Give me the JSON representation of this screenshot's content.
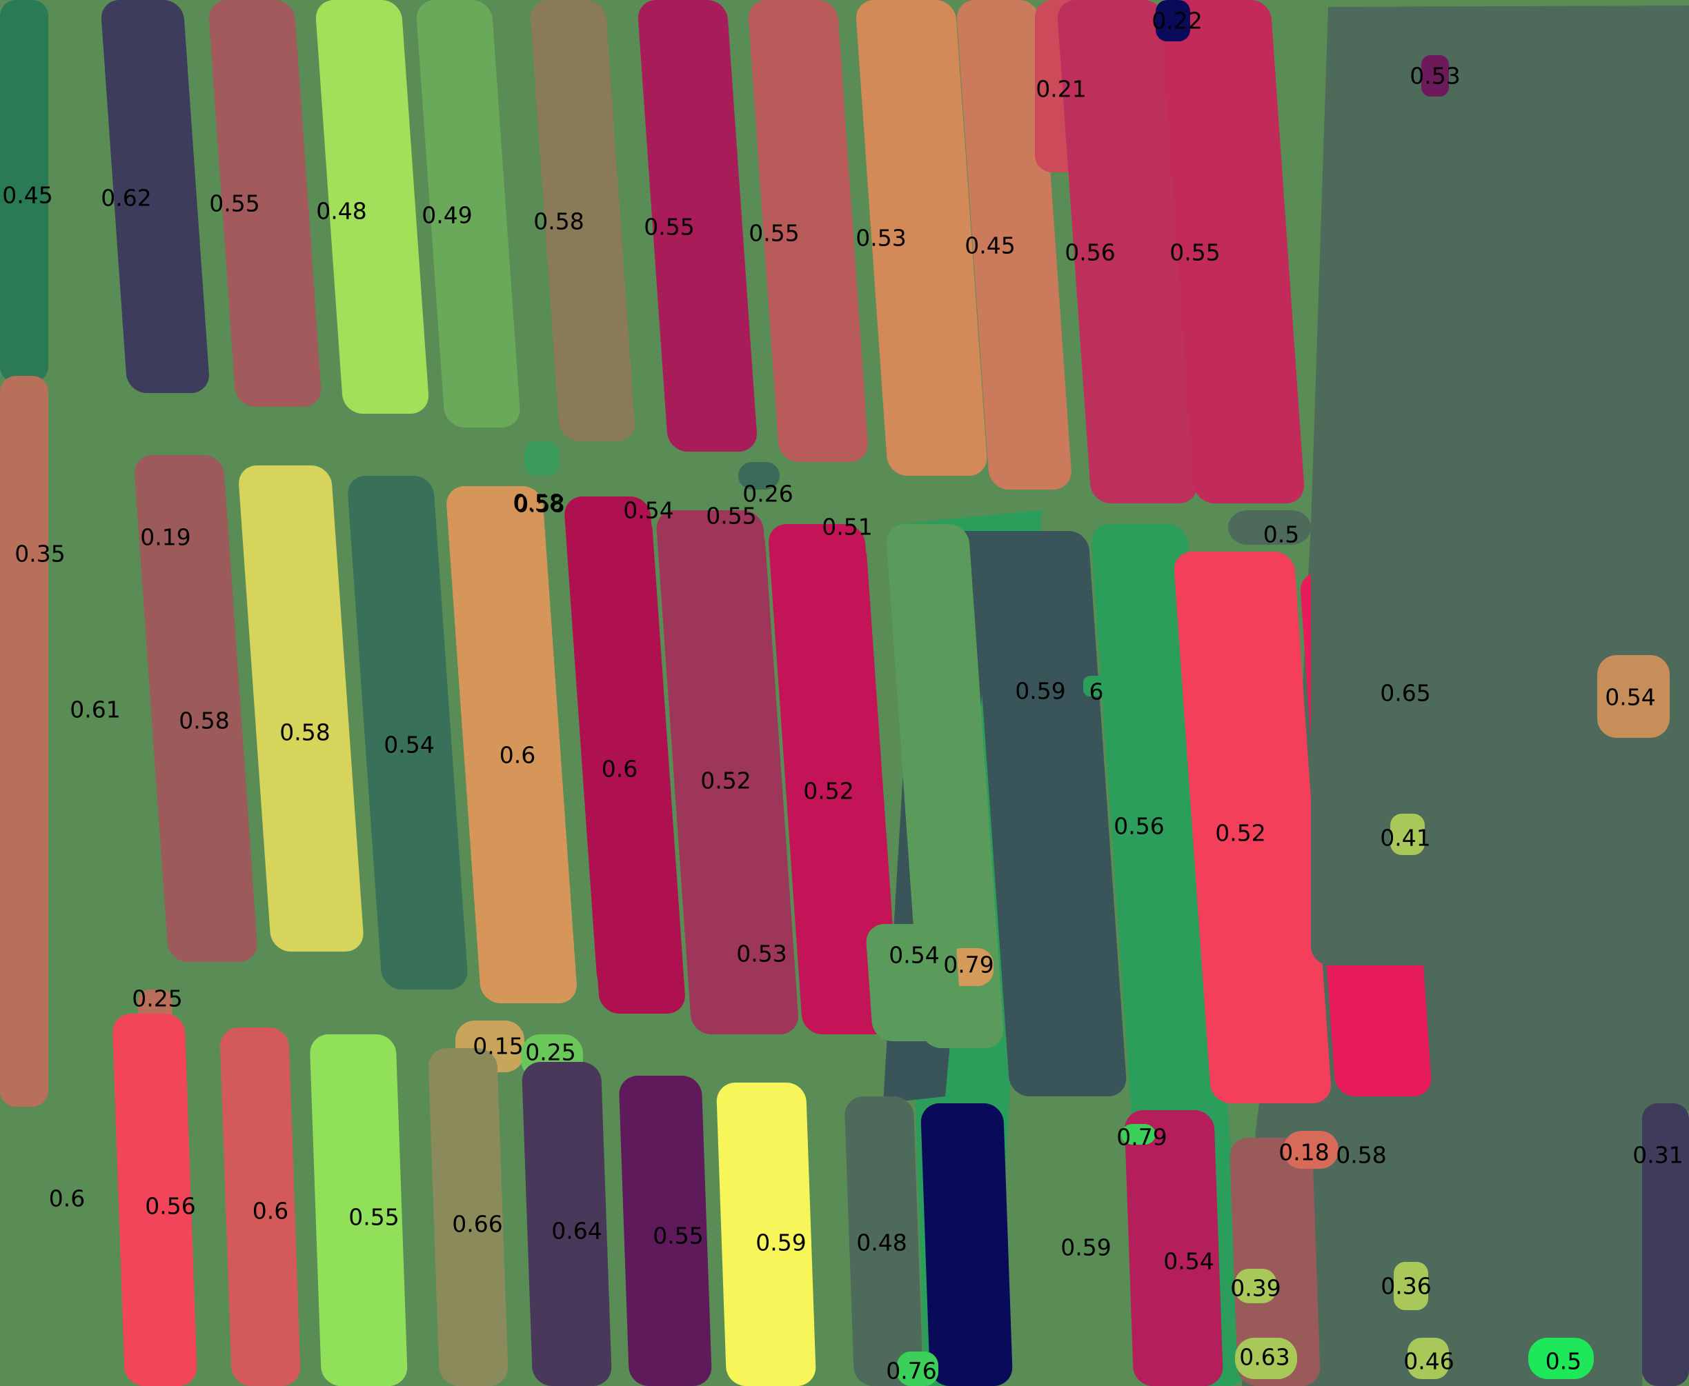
{
  "image": {
    "description_kind": "segmentation overlay of plant rows with confidence scores",
    "background_color": "#5a8c55"
  },
  "segments": [
    {
      "label": "0.45",
      "color": "#2a7a55"
    },
    {
      "label": "0.62",
      "color": "#3e3c5c"
    },
    {
      "label": "0.55",
      "color": "#a35a5c"
    },
    {
      "label": "0.48",
      "color": "#a3e05a"
    },
    {
      "label": "0.49",
      "color": "#6aa85a"
    },
    {
      "label": "0.58",
      "color": "#8a7a58"
    },
    {
      "label": "0.55",
      "color": "#a81c5a"
    },
    {
      "label": "0.55",
      "color": "#b85a5a"
    },
    {
      "label": "0.53",
      "color": "#d48a58"
    },
    {
      "label": "0.45",
      "color": "#cc7a5c"
    },
    {
      "label": "0.21",
      "color": "#cc4a5a"
    },
    {
      "label": "0.56",
      "color": "#be305c"
    },
    {
      "label": "0.55",
      "color": "#c22a5a"
    },
    {
      "label": "0.53",
      "color": "#6c1a5a"
    },
    {
      "label": "0.35",
      "color": "#b8705a"
    },
    {
      "label": "0.19",
      "color": "#cc4a5a"
    },
    {
      "label": "0.61",
      "color": "#9c5a5a"
    },
    {
      "label": "0.58",
      "color": "#d6d45a"
    },
    {
      "label": "0.58",
      "color": "#38705a"
    },
    {
      "label": "0.54",
      "color": "#d6965a"
    },
    {
      "label": "0.58",
      "color": "#ae1050"
    },
    {
      "label": "0.6",
      "color": "#ae1050"
    },
    {
      "label": "0.54",
      "color": "#9e365a"
    },
    {
      "label": "0.6",
      "color": "#9e365a"
    },
    {
      "label": "0.55",
      "color": "#c41458"
    },
    {
      "label": "0.52",
      "color": "#c41458"
    },
    {
      "label": "0.26",
      "color": "#3a6a5a"
    },
    {
      "label": "0.51",
      "color": "#5a9a5a"
    },
    {
      "label": "0.52",
      "color": "#5a9a5a"
    },
    {
      "label": "0.54",
      "color": "#3a555a"
    },
    {
      "label": "0.59",
      "color": "#2a9e5a"
    },
    {
      "label": "6",
      "color": "#2a9e5a"
    },
    {
      "label": "0.56",
      "color": "#f43f5a"
    },
    {
      "label": "0.52",
      "color": "#e81c5a"
    },
    {
      "label": "0.5",
      "color": "#4e6a5a"
    },
    {
      "label": "0.65",
      "color": "#4e6a5a"
    },
    {
      "label": "0.54",
      "color": "#c88e5a"
    },
    {
      "label": "0.41",
      "color": "#a8c85a"
    },
    {
      "label": "0.25",
      "color": "#b8705a"
    },
    {
      "label": "0.79",
      "color": "#d49a5a"
    },
    {
      "label": "0.53",
      "color": "#5a9a5a"
    },
    {
      "label": "0.15",
      "color": "#c8a55a"
    },
    {
      "label": "0.25",
      "color": "#6ac85a"
    },
    {
      "label": "0.6",
      "color": "#f2455a"
    },
    {
      "label": "0.56",
      "color": "#d45a5a"
    },
    {
      "label": "0.6",
      "color": "#90e05a"
    },
    {
      "label": "0.55",
      "color": "#8a8a5a"
    },
    {
      "label": "0.66",
      "color": "#4a385a"
    },
    {
      "label": "0.64",
      "color": "#5e1a5a"
    },
    {
      "label": "0.55",
      "color": "#f6f55a"
    },
    {
      "label": "0.59",
      "color": "#4e6a5a"
    },
    {
      "label": "0.48",
      "color": "#0a0a5a"
    },
    {
      "label": "0.76",
      "color": "#3ad05a"
    },
    {
      "label": "0.59",
      "color": "#b41e5a"
    },
    {
      "label": "0.79",
      "color": "#3ad05a"
    },
    {
      "label": "0.54",
      "color": "#9a5a5a"
    },
    {
      "label": "0.18",
      "color": "#d86a5a"
    },
    {
      "label": "0.58",
      "color": "#4e6a5a"
    },
    {
      "label": "0.39",
      "color": "#a8c85a"
    },
    {
      "label": "0.36",
      "color": "#a8c85a"
    },
    {
      "label": "0.63",
      "color": "#a8c85a"
    },
    {
      "label": "0.46",
      "color": "#a8c85a"
    },
    {
      "label": "0.5",
      "color": "#1ee85a"
    },
    {
      "label": "0.31",
      "color": "#3e3c5a"
    },
    {
      "label": "0.22",
      "color": "#0a0a5a"
    },
    {
      "label": "0.58",
      "color": "#3a9a5a"
    }
  ]
}
